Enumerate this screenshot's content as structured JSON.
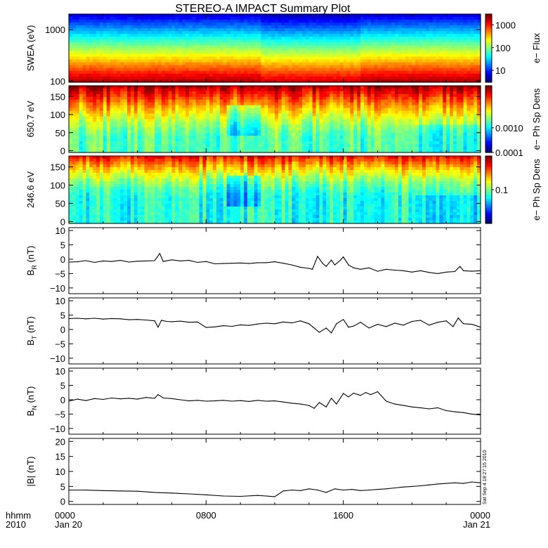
{
  "title": "STEREO-A IMPACT Summary Plot",
  "timestamp": "Sat Sep  4 18:27:15 2010",
  "time_axis": {
    "corner_label_top": "hhmm",
    "corner_label_bottom": "2010",
    "ticks": [
      {
        "hour": 0,
        "label": "0000",
        "sublabel": "Jan 20"
      },
      {
        "hour": 8,
        "label": "0800",
        "sublabel": ""
      },
      {
        "hour": 16,
        "label": "1600",
        "sublabel": ""
      },
      {
        "hour": 24,
        "label": "0000",
        "sublabel": "Jan 21"
      }
    ],
    "range_hours": [
      0,
      24
    ]
  },
  "chart_data": [
    {
      "type": "heatmap",
      "id": "swea",
      "ylabel": "SWEA (eV)",
      "yscale": "log",
      "ylim": [
        95,
        2000
      ],
      "yticks": [
        {
          "v": 100,
          "label": "100"
        },
        {
          "v": 1000,
          "label": "1000"
        }
      ],
      "colorbar": {
        "label": "e− Flux",
        "scale": "log",
        "range": [
          3,
          3000
        ],
        "ticks": [
          {
            "v": 10,
            "label": "10"
          },
          {
            "v": 100,
            "label": "100"
          },
          {
            "v": 1000,
            "label": "1000"
          }
        ]
      }
    },
    {
      "type": "heatmap",
      "id": "pad650",
      "ylabel": "650.7 eV",
      "yscale": "linear",
      "ylim": [
        -5,
        180
      ],
      "yticks": [
        {
          "v": 0,
          "label": "0"
        },
        {
          "v": 50,
          "label": "50"
        },
        {
          "v": 100,
          "label": "100"
        },
        {
          "v": 150,
          "label": "150"
        }
      ],
      "colorbar": {
        "label": "e− Ph Sp Dens",
        "scale": "log",
        "range": [
          0.0001,
          0.05
        ],
        "ticks": [
          {
            "v": 0.0001,
            "label": "0.0001"
          },
          {
            "v": 0.001,
            "label": "0.0010"
          }
        ]
      }
    },
    {
      "type": "heatmap",
      "id": "pad246",
      "ylabel": "246.6 eV",
      "yscale": "linear",
      "ylim": [
        -5,
        180
      ],
      "yticks": [
        {
          "v": 0,
          "label": "0"
        },
        {
          "v": 50,
          "label": "50"
        },
        {
          "v": 100,
          "label": "100"
        },
        {
          "v": 150,
          "label": "150"
        }
      ],
      "colorbar": {
        "label": "e− Ph Sp Dens",
        "scale": "log",
        "range": [
          0.01,
          1
        ],
        "ticks": [
          {
            "v": 0.1,
            "label": "0.1"
          }
        ]
      }
    },
    {
      "type": "line",
      "id": "br",
      "ylabel_main": "B",
      "ylabel_sub": "R",
      "ylabel_unit": "(nT)",
      "ylim": [
        -12,
        11
      ],
      "yticks": [
        {
          "v": -10,
          "label": "−10"
        },
        {
          "v": -5,
          "label": "−5"
        },
        {
          "v": 0,
          "label": "0"
        },
        {
          "v": 5,
          "label": "5"
        },
        {
          "v": 10,
          "label": "10"
        }
      ],
      "x": [
        0,
        0.5,
        1,
        1.5,
        2,
        2.5,
        3,
        3.5,
        4,
        4.5,
        5,
        5.3,
        5.5,
        6,
        6.5,
        7,
        7.5,
        8,
        8.5,
        9,
        9.5,
        10,
        10.5,
        11,
        11.5,
        12,
        12.5,
        13,
        13.5,
        14,
        14.2,
        14.5,
        14.8,
        15,
        15.3,
        15.5,
        15.8,
        16,
        16.3,
        16.6,
        17,
        17.5,
        18,
        18.5,
        19,
        19.5,
        20,
        20.5,
        21,
        21.5,
        22,
        22.5,
        22.8,
        23,
        23.5,
        24
      ],
      "values": [
        -1,
        -0.9,
        -0.5,
        -1.1,
        -0.6,
        -0.8,
        -0.4,
        -1.0,
        -0.7,
        -0.6,
        -0.5,
        2,
        -0.8,
        -0.2,
        -0.6,
        -0.4,
        -1.1,
        -0.8,
        -1.6,
        -1.5,
        -1.4,
        -1.3,
        -1.5,
        -1.2,
        -1.2,
        -0.9,
        -1.4,
        -2.0,
        -2.8,
        -3.2,
        -3.5,
        1,
        -1.5,
        -2.5,
        -0.3,
        -2,
        -0.5,
        0.8,
        -2.0,
        -3,
        -3.5,
        -3.0,
        -4.2,
        -3.5,
        -3.8,
        -4.0,
        -4.5,
        -4.0,
        -4.6,
        -5.0,
        -4.5,
        -4.3,
        -2.5,
        -4.0,
        -4.2,
        -4.0
      ]
    },
    {
      "type": "line",
      "id": "bt",
      "ylabel_main": "B",
      "ylabel_sub": "T",
      "ylabel_unit": "(nT)",
      "ylim": [
        -12,
        11
      ],
      "yticks": [
        {
          "v": -10,
          "label": "−10"
        },
        {
          "v": -5,
          "label": "−5"
        },
        {
          "v": 0,
          "label": "0"
        },
        {
          "v": 5,
          "label": "5"
        },
        {
          "v": 10,
          "label": "10"
        }
      ],
      "x": [
        0,
        0.5,
        1,
        1.5,
        2,
        2.5,
        3,
        3.5,
        4,
        4.5,
        5,
        5.2,
        5.4,
        5.7,
        6,
        6.5,
        7,
        7.5,
        8,
        8.5,
        9,
        9.5,
        10,
        10.5,
        11,
        11.5,
        12,
        12.5,
        13,
        13.5,
        14,
        14.3,
        14.6,
        15,
        15.3,
        15.6,
        16,
        16.3,
        16.6,
        17,
        17.5,
        18,
        18.5,
        19,
        19.5,
        20,
        20.5,
        21,
        21.5,
        22,
        22.4,
        22.7,
        23,
        23.5,
        24
      ],
      "values": [
        3.8,
        3.9,
        3.7,
        3.9,
        3.6,
        3.8,
        3.7,
        3.4,
        3.5,
        3.3,
        3.0,
        0.8,
        3.2,
        2.8,
        2.7,
        2.9,
        2.5,
        2.6,
        0.7,
        0.9,
        1.3,
        1.1,
        1.6,
        1.4,
        1.9,
        2.2,
        2.0,
        2.6,
        2.3,
        3.0,
        2.0,
        0.5,
        -1.0,
        0.5,
        -1.2,
        2.0,
        3.5,
        0.8,
        1.2,
        2.5,
        0.5,
        1.8,
        1.0,
        2.2,
        1.5,
        2.8,
        3.2,
        1.5,
        2.5,
        3.0,
        1.0,
        4.0,
        2.0,
        1.8,
        0.8
      ]
    },
    {
      "type": "line",
      "id": "bn",
      "ylabel_main": "B",
      "ylabel_sub": "N",
      "ylabel_unit": "(nT)",
      "ylim": [
        -12,
        11
      ],
      "yticks": [
        {
          "v": -10,
          "label": "−10"
        },
        {
          "v": -5,
          "label": "−5"
        },
        {
          "v": 0,
          "label": "0"
        },
        {
          "v": 5,
          "label": "5"
        },
        {
          "v": 10,
          "label": "10"
        }
      ],
      "x": [
        0,
        0.5,
        1,
        1.5,
        2,
        2.5,
        3,
        3.5,
        4,
        4.5,
        5,
        5.2,
        5.5,
        6,
        6.5,
        7,
        7.5,
        8,
        8.5,
        9,
        9.5,
        10,
        10.5,
        11,
        11.5,
        12,
        12.5,
        13,
        13.5,
        14,
        14.3,
        14.6,
        15,
        15.3,
        15.6,
        16,
        16.3,
        16.6,
        17,
        17.3,
        17.6,
        18,
        18.5,
        19,
        19.5,
        20,
        20.5,
        21,
        21.5,
        22,
        22.5,
        23,
        23.5,
        24
      ],
      "values": [
        -0.5,
        0.2,
        -0.3,
        0.4,
        0.1,
        0.6,
        0.3,
        0.5,
        0.2,
        0.8,
        0.5,
        1.8,
        0.6,
        0.4,
        0.0,
        -0.4,
        -0.2,
        -0.5,
        -0.4,
        -0.2,
        -0.5,
        -0.3,
        -0.6,
        -0.2,
        -0.5,
        -0.4,
        -0.8,
        -1.2,
        -1.5,
        -2.0,
        -3.0,
        -1.0,
        -2.5,
        0.5,
        -1.5,
        2.2,
        1.0,
        2.3,
        1.5,
        2.5,
        1.8,
        2.8,
        -0.5,
        -1.5,
        -2.0,
        -2.5,
        -2.8,
        -3.2,
        -2.8,
        -3.8,
        -4.2,
        -4.5,
        -5.0,
        -5.3
      ]
    },
    {
      "type": "line",
      "id": "bmag",
      "ylabel_main": "|B|",
      "ylabel_sub": "",
      "ylabel_unit": "(nT)",
      "ylim": [
        -1,
        21
      ],
      "yticks": [
        {
          "v": 0,
          "label": "0"
        },
        {
          "v": 5,
          "label": "5"
        },
        {
          "v": 10,
          "label": "10"
        },
        {
          "v": 15,
          "label": "15"
        },
        {
          "v": 20,
          "label": "20"
        }
      ],
      "x": [
        0,
        1,
        2,
        3,
        4,
        5,
        6,
        7,
        8,
        9,
        10,
        11,
        11.5,
        12,
        12.5,
        13,
        13.5,
        14,
        14.5,
        15,
        15.5,
        16,
        16.5,
        17,
        17.5,
        18,
        18.5,
        19,
        19.5,
        20,
        20.5,
        21,
        21.5,
        22,
        22.5,
        23,
        23.5,
        24
      ],
      "values": [
        3.8,
        3.8,
        3.6,
        3.5,
        3.4,
        3.0,
        2.8,
        2.5,
        2.2,
        1.8,
        1.7,
        2.0,
        1.8,
        1.6,
        3.5,
        3.8,
        3.6,
        4.2,
        3.8,
        3.0,
        4.2,
        3.8,
        4.0,
        3.6,
        3.8,
        4.0,
        4.2,
        4.5,
        4.8,
        5.0,
        5.2,
        5.5,
        5.8,
        6.0,
        6.2,
        6.0,
        6.5,
        6.2
      ]
    }
  ]
}
